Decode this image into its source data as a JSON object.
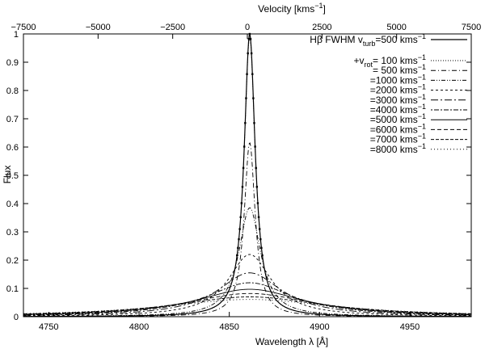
{
  "chart_data": {
    "type": "line",
    "xlabel": "Wavelength λ [Å]",
    "ylabel": "Flux",
    "x2label": "Velocity [kms⁻¹]",
    "xlim": [
      4736.0,
      4984.0
    ],
    "ylim": [
      0,
      1
    ],
    "x2lim": [
      -7500,
      7500
    ],
    "xticks": [
      "4750",
      "4800",
      "4850",
      "4900",
      "4950"
    ],
    "yticks": [
      "0",
      "0.1",
      "0.2",
      "0.3",
      "0.4",
      "0.5",
      "0.6",
      "0.7",
      "0.8",
      "0.9",
      "1"
    ],
    "x2ticks": [
      "−7500",
      "−5000",
      "−2500",
      "0",
      "2500",
      "5000",
      "7500"
    ],
    "line_center_angstrom": 4861.3,
    "grid": false,
    "legend_position": "top-right",
    "legend_title": {
      "base": "Hβ FWHM v",
      "sub": "turb",
      "rest": "=500 kms",
      "sup": "−1"
    },
    "legend_group": {
      "prefix": "+v",
      "sub": "rot",
      "eq": "="
    },
    "series": [
      {
        "name": "Hβ FWHM vturb=500 kms−1",
        "kind": "base",
        "vrot_kms": 0,
        "peak": 1.0,
        "value_label": "",
        "style": "solid"
      },
      {
        "name": "+vrot= 100 kms−1",
        "kind": "rot",
        "vrot_kms": 100,
        "peak": 0.99,
        "value_label": " 100",
        "style": "dotted"
      },
      {
        "name": "= 500 kms−1",
        "kind": "rot",
        "vrot_kms": 500,
        "peak": 0.615,
        "value_label": " 500",
        "style": "dashdot"
      },
      {
        "name": "=1000 kms−1",
        "kind": "rot",
        "vrot_kms": 1000,
        "peak": 0.385,
        "value_label": "1000",
        "style": "dashdotdot"
      },
      {
        "name": "=2000 kms−1",
        "kind": "rot",
        "vrot_kms": 2000,
        "peak": 0.22,
        "value_label": "2000",
        "style": "shortdash"
      },
      {
        "name": "=3000 kms−1",
        "kind": "rot",
        "vrot_kms": 3000,
        "peak": 0.155,
        "value_label": "3000",
        "style": "longdashdot"
      },
      {
        "name": "=4000 kms−1",
        "kind": "rot",
        "vrot_kms": 4000,
        "peak": 0.12,
        "value_label": "4000",
        "style": "dotdash"
      },
      {
        "name": "=5000 kms−1",
        "kind": "rot",
        "vrot_kms": 5000,
        "peak": 0.097,
        "value_label": "5000",
        "style": "solid"
      },
      {
        "name": "=6000 kms−1",
        "kind": "rot",
        "vrot_kms": 6000,
        "peak": 0.082,
        "value_label": "6000",
        "style": "mediumdash"
      },
      {
        "name": "=7000 kms−1",
        "kind": "rot",
        "vrot_kms": 7000,
        "peak": 0.07,
        "value_label": "7000",
        "style": "finedash"
      },
      {
        "name": "=8000 kms−1",
        "kind": "rot",
        "vrot_kms": 8000,
        "peak": 0.061,
        "value_label": "8000",
        "style": "finedot"
      }
    ],
    "unit_label": {
      "base": " kms",
      "sup": "−1"
    }
  }
}
